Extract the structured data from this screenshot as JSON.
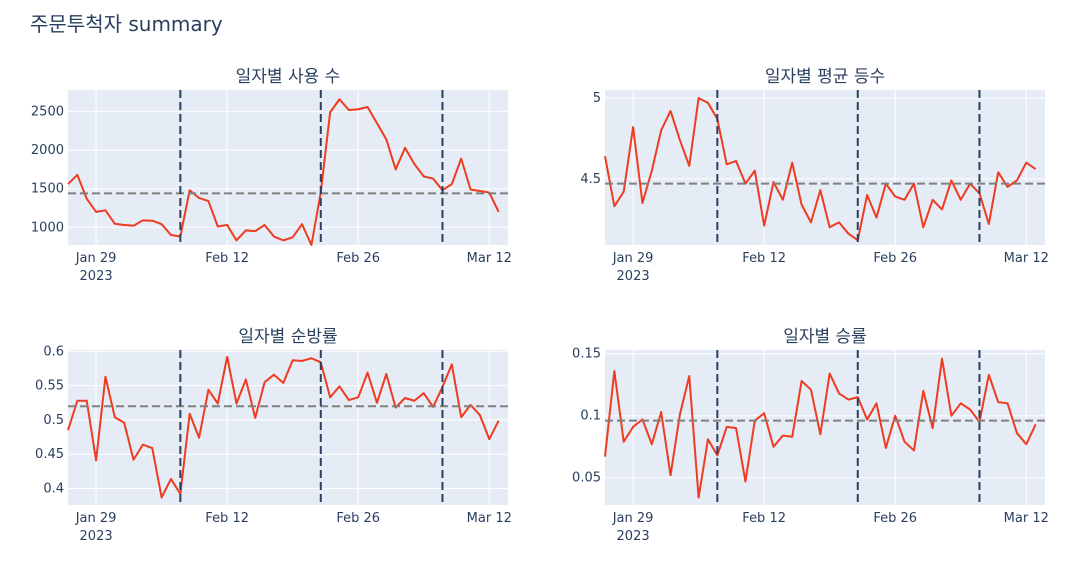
{
  "title": "주문투척자 summary",
  "colors": {
    "line": "#ef3b1f",
    "mean": "#808080",
    "vline": "#2a3f5f",
    "plot_bg": "#e5ecf6",
    "text": "#2a3f5f"
  },
  "chart_data": [
    {
      "type": "line",
      "title": "일자별 사용 수",
      "x_start": "2023-01-26",
      "x_ticks": [
        [
          "2023-01-29",
          "Jan 29",
          "2023"
        ],
        [
          "2023-02-12",
          "Feb 12",
          ""
        ],
        [
          "2023-02-26",
          "Feb 26",
          ""
        ],
        [
          "2023-03-12",
          "Mar 12",
          ""
        ]
      ],
      "xlim": [
        "2023-01-26",
        "2023-03-14"
      ],
      "ylim": [
        770,
        2780
      ],
      "y_ticks": [
        1000,
        1500,
        2000,
        2500
      ],
      "y_tick_labels": [
        "1000",
        "1500",
        "2000",
        "2500"
      ],
      "mean_line": 1440,
      "vlines": [
        "2023-02-07",
        "2023-02-22",
        "2023-03-07"
      ],
      "values": [
        1560,
        1680,
        1370,
        1200,
        1220,
        1045,
        1030,
        1020,
        1090,
        1085,
        1040,
        900,
        880,
        1480,
        1380,
        1340,
        1010,
        1030,
        830,
        960,
        950,
        1030,
        880,
        830,
        870,
        1040,
        770,
        1450,
        2490,
        2660,
        2520,
        2530,
        2560,
        2350,
        2140,
        1750,
        2030,
        1820,
        1660,
        1630,
        1480,
        1560,
        1890,
        1490,
        1470,
        1450,
        1200
      ]
    },
    {
      "type": "line",
      "title": "일자별 평균 등수",
      "x_start": "2023-01-26",
      "x_ticks": [
        [
          "2023-01-29",
          "Jan 29",
          "2023"
        ],
        [
          "2023-02-12",
          "Feb 12",
          ""
        ],
        [
          "2023-02-26",
          "Feb 26",
          ""
        ],
        [
          "2023-03-12",
          "Mar 12",
          ""
        ]
      ],
      "xlim": [
        "2023-01-26",
        "2023-03-14"
      ],
      "ylim": [
        4.09,
        5.05
      ],
      "y_ticks": [
        4.5,
        5
      ],
      "y_tick_labels": [
        "4.5",
        "5"
      ],
      "mean_line": 4.47,
      "vlines": [
        "2023-02-07",
        "2023-02-22",
        "2023-03-07"
      ],
      "values": [
        4.64,
        4.33,
        4.42,
        4.82,
        4.35,
        4.55,
        4.8,
        4.92,
        4.74,
        4.58,
        5.0,
        4.97,
        4.87,
        4.59,
        4.61,
        4.47,
        4.55,
        4.21,
        4.48,
        4.37,
        4.6,
        4.34,
        4.23,
        4.43,
        4.2,
        4.23,
        4.16,
        4.12,
        4.4,
        4.26,
        4.47,
        4.39,
        4.37,
        4.47,
        4.2,
        4.37,
        4.31,
        4.49,
        4.37,
        4.47,
        4.41,
        4.22,
        4.54,
        4.45,
        4.49,
        4.6,
        4.56
      ]
    },
    {
      "type": "line",
      "title": "일자별 순방률",
      "x_start": "2023-01-26",
      "x_ticks": [
        [
          "2023-01-29",
          "Jan 29",
          "2023"
        ],
        [
          "2023-02-12",
          "Feb 12",
          ""
        ],
        [
          "2023-02-26",
          "Feb 26",
          ""
        ],
        [
          "2023-03-12",
          "Mar 12",
          ""
        ]
      ],
      "xlim": [
        "2023-01-26",
        "2023-03-14"
      ],
      "ylim": [
        0.376,
        0.602
      ],
      "y_ticks": [
        0.4,
        0.45,
        0.5,
        0.55,
        0.6
      ],
      "y_tick_labels": [
        "0.4",
        "0.45",
        "0.5",
        "0.55",
        "0.6"
      ],
      "mean_line": 0.52,
      "vlines": [
        "2023-02-07",
        "2023-02-22",
        "2023-03-07"
      ],
      "values": [
        0.485,
        0.528,
        0.528,
        0.441,
        0.563,
        0.504,
        0.496,
        0.442,
        0.464,
        0.459,
        0.387,
        0.414,
        0.392,
        0.509,
        0.474,
        0.544,
        0.524,
        0.592,
        0.524,
        0.559,
        0.503,
        0.555,
        0.566,
        0.554,
        0.587,
        0.586,
        0.59,
        0.584,
        0.533,
        0.549,
        0.529,
        0.533,
        0.569,
        0.525,
        0.567,
        0.518,
        0.532,
        0.528,
        0.539,
        0.519,
        0.548,
        0.581,
        0.504,
        0.522,
        0.507,
        0.472,
        0.499
      ]
    },
    {
      "type": "line",
      "title": "일자별 승률",
      "x_start": "2023-01-26",
      "x_ticks": [
        [
          "2023-01-29",
          "Jan 29",
          "2023"
        ],
        [
          "2023-02-12",
          "Feb 12",
          ""
        ],
        [
          "2023-02-26",
          "Feb 26",
          ""
        ],
        [
          "2023-03-12",
          "Mar 12",
          ""
        ]
      ],
      "xlim": [
        "2023-01-26",
        "2023-03-14"
      ],
      "ylim": [
        0.028,
        0.153
      ],
      "y_ticks": [
        0.05,
        0.1,
        0.15
      ],
      "y_tick_labels": [
        "0.05",
        "0.1",
        "0.15"
      ],
      "mean_line": 0.096,
      "vlines": [
        "2023-02-07",
        "2023-02-22",
        "2023-03-07"
      ],
      "values": [
        0.067,
        0.136,
        0.079,
        0.091,
        0.097,
        0.077,
        0.103,
        0.052,
        0.101,
        0.132,
        0.034,
        0.081,
        0.068,
        0.091,
        0.09,
        0.047,
        0.096,
        0.102,
        0.075,
        0.084,
        0.083,
        0.128,
        0.121,
        0.085,
        0.134,
        0.118,
        0.113,
        0.115,
        0.097,
        0.11,
        0.074,
        0.1,
        0.079,
        0.072,
        0.12,
        0.09,
        0.146,
        0.1,
        0.11,
        0.105,
        0.095,
        0.133,
        0.111,
        0.11,
        0.086,
        0.077,
        0.093
      ]
    }
  ]
}
